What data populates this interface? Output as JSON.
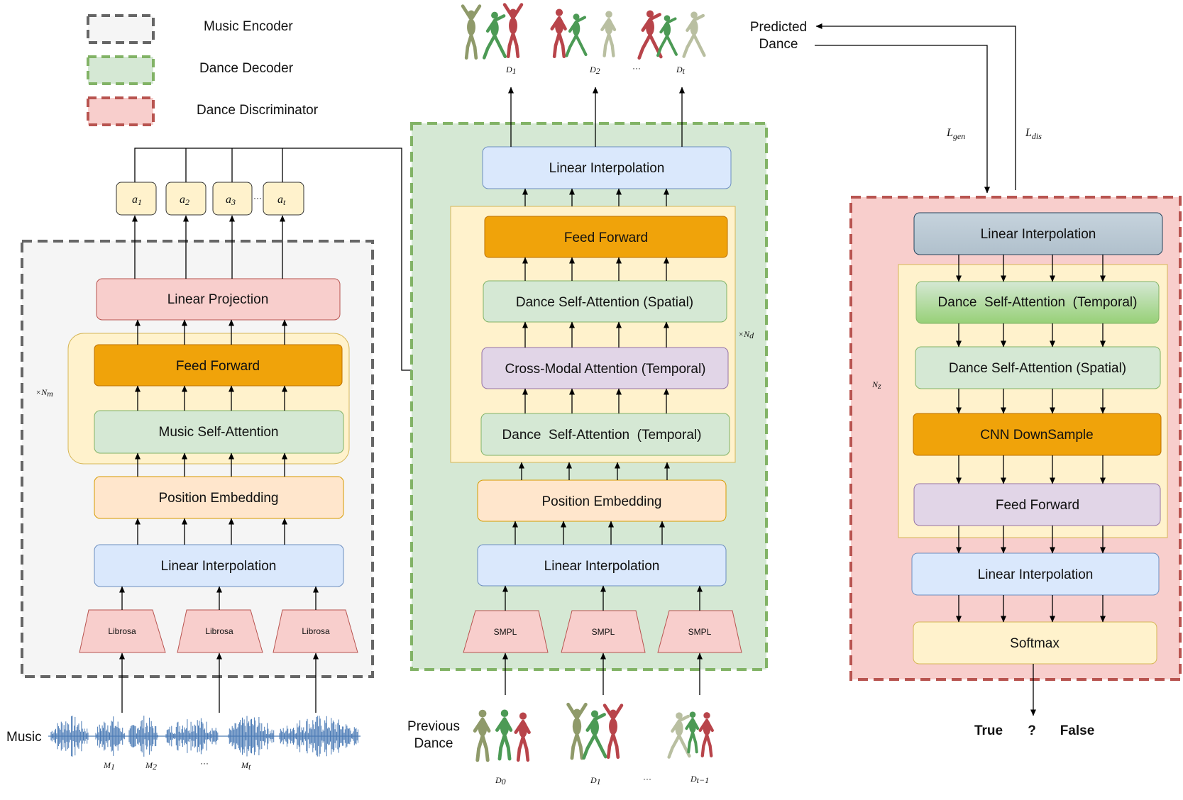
{
  "legend": {
    "music_encoder": "Music Encoder",
    "dance_decoder": "Dance Decoder",
    "dance_discriminator": "Dance Discriminator"
  },
  "encoder": {
    "outputs": [
      "a",
      "a",
      "a",
      "a"
    ],
    "output_subs": [
      "1",
      "2",
      "3",
      "t"
    ],
    "output_dots": "···",
    "linear_projection": "Linear Projection",
    "feed_forward": "Feed Forward",
    "self_attention": "Music Self-Attention",
    "position_embedding": "Position Embedding",
    "linear_interpolation": "Linear Interpolation",
    "librosa": [
      "Librosa",
      "Librosa",
      "Librosa"
    ],
    "repeat_label": "×N",
    "repeat_sub": "m"
  },
  "music": {
    "label": "Music",
    "marks": [
      "M",
      "M",
      "M"
    ],
    "mark_subs": [
      "1",
      "2",
      "t"
    ],
    "dots": "···"
  },
  "decoder": {
    "outputs": [
      "D",
      "D",
      "D"
    ],
    "output_subs": [
      "1",
      "2",
      "t"
    ],
    "output_dots": "···",
    "top_linear_interpolation": "Linear Interpolation",
    "feed_forward": "Feed Forward",
    "spatial_attention": "Dance Self-Attention (Spatial)",
    "cross_modal": "Cross-Modal Attention (Temporal)",
    "temporal_attention": "Dance  Self-Attention  (Temporal)",
    "position_embedding": "Position Embedding",
    "linear_interpolation": "Linear Interpolation",
    "smpl": [
      "SMPL",
      "SMPL",
      "SMPL"
    ],
    "repeat_label": "×N",
    "repeat_sub": "d"
  },
  "previous_dance": {
    "line1": "Previous",
    "line2": "Dance",
    "marks": [
      "D",
      "D",
      "D"
    ],
    "mark_subs": [
      "0",
      "1",
      "t−1"
    ],
    "dots": "···"
  },
  "predicted_dance": {
    "line1": "Predicted",
    "line2": "Dance"
  },
  "losses": {
    "gen": "L",
    "gen_sub": "gen",
    "dis": "L",
    "dis_sub": "dis"
  },
  "discriminator": {
    "top_linear_interpolation": "Linear Interpolation",
    "temporal_attention": "Dance  Self-Attention  (Temporal)",
    "spatial_attention": "Dance Self-Attention (Spatial)",
    "cnn_downsample": "CNN DownSample",
    "feed_forward": "Feed Forward",
    "linear_interpolation": "Linear Interpolation",
    "softmax": "Softmax",
    "repeat_label": "N",
    "repeat_sub": "z",
    "verdict_true": "True",
    "verdict_question": "?",
    "verdict_false": "False"
  },
  "colors": {
    "blue_box": "#dae8fc",
    "orange_box": "#f0a30a",
    "green_box": "#d5e8d4",
    "purple_box": "#e1d5e7",
    "peach_box": "#ffe6cc",
    "pink_box": "#f8cecc",
    "yellow_bg": "#fff2cc",
    "gray_box": "#bac8d3"
  }
}
